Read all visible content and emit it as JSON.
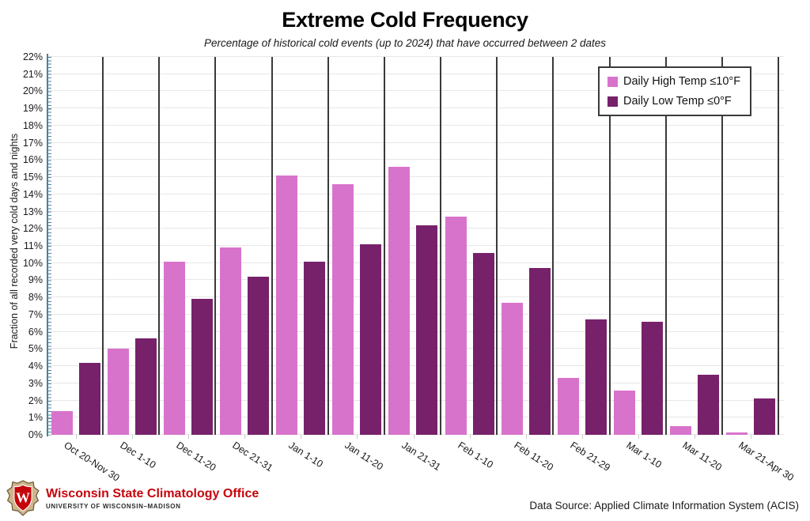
{
  "title": "Extreme Cold Frequency",
  "subtitle": "Percentage of historical cold events (up to 2024) that have occurred between 2 dates",
  "chart_data": {
    "type": "bar",
    "categories": [
      "Oct 20-Nov 30",
      "Dec 1-10",
      "Dec 11-20",
      "Dec 21-31",
      "Jan 1-10",
      "Jan 11-20",
      "Jan 21-31",
      "Feb 1-10",
      "Feb 11-20",
      "Feb 21-29",
      "Mar 1-10",
      "Mar 11-20",
      "Mar 21-Apr 30"
    ],
    "series": [
      {
        "name": "Daily High Temp ≤10°F",
        "color": "#d873cc",
        "values": [
          1.4,
          5.0,
          10.1,
          10.9,
          15.1,
          14.6,
          15.6,
          12.7,
          7.7,
          3.3,
          2.6,
          0.5,
          0.15
        ]
      },
      {
        "name": "Daily Low Temp ≤0°F",
        "color": "#77216b",
        "values": [
          4.2,
          5.6,
          7.9,
          9.2,
          10.1,
          11.1,
          12.2,
          10.6,
          9.7,
          6.7,
          6.6,
          3.5,
          2.1
        ]
      }
    ],
    "xlabel": "",
    "ylabel": "Fraction of all recorded very cold days and nights",
    "ylim": [
      0,
      22
    ],
    "ytick_step": 1,
    "ytick_suffix": "%",
    "grid": true,
    "group_separators": true,
    "legend_position": "top-right"
  },
  "colors": {
    "axis_blue": "#4981a1",
    "separator": "#3a3a3a",
    "gridline": "#e7e7e7",
    "brand_red": "#c5050c"
  },
  "footer": {
    "org_name": "Wisconsin State Climatology Office",
    "org_subname": "UNIVERSITY OF WISCONSIN–MADISON",
    "data_source": "Data Source: Applied Climate Information System (ACIS)"
  }
}
